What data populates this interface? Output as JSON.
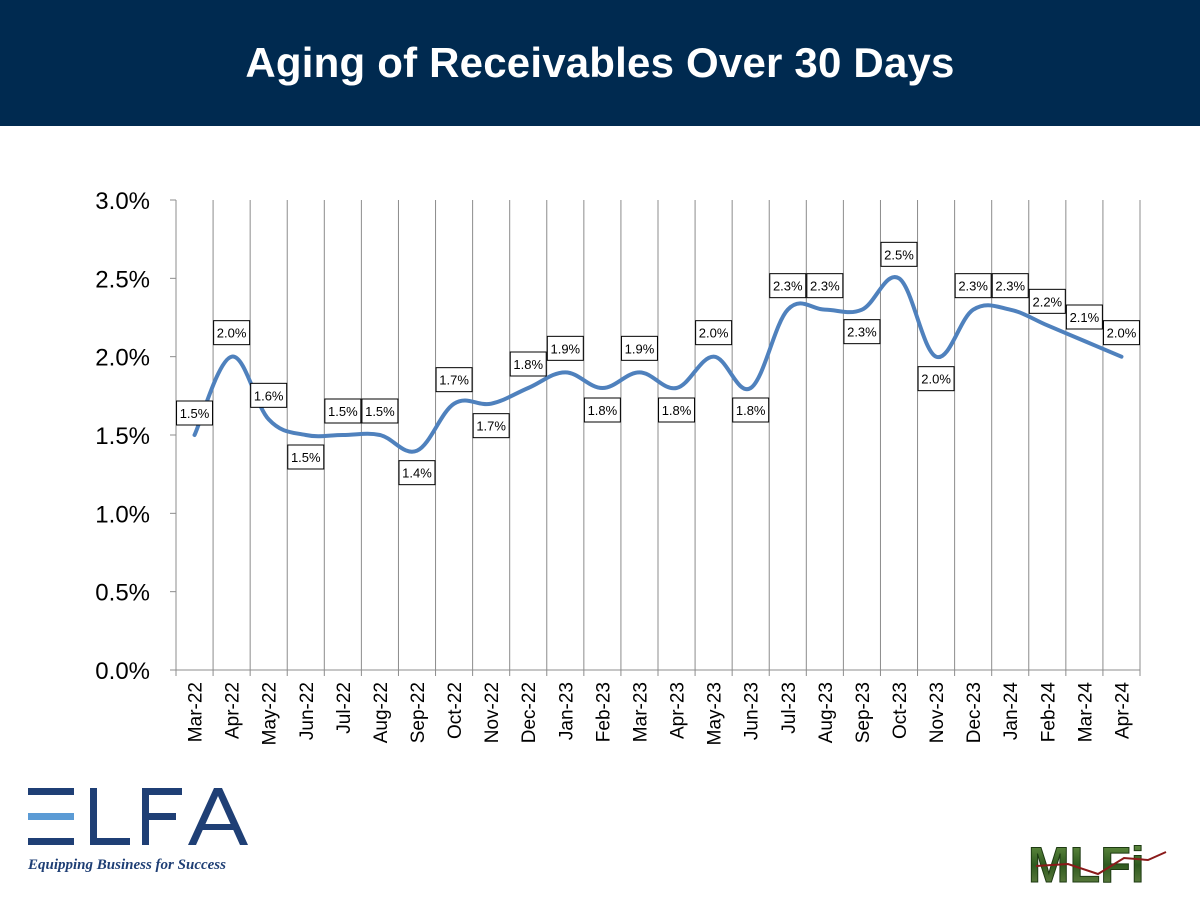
{
  "header": {
    "title": "Aging of Receivables Over 30 Days"
  },
  "chart_data": {
    "type": "line",
    "title": "Aging of Receivables Over 30 Days",
    "categories": [
      "Mar-22",
      "Apr-22",
      "May-22",
      "Jun-22",
      "Jul-22",
      "Aug-22",
      "Sep-22",
      "Oct-22",
      "Nov-22",
      "Dec-22",
      "Jan-23",
      "Feb-23",
      "Mar-23",
      "Apr-23",
      "May-23",
      "Jun-23",
      "Jul-23",
      "Aug-23",
      "Sep-23",
      "Oct-23",
      "Nov-23",
      "Dec-23",
      "Jan-24",
      "Feb-24",
      "Mar-24",
      "Apr-24"
    ],
    "values": [
      1.5,
      2.0,
      1.6,
      1.5,
      1.5,
      1.5,
      1.4,
      1.7,
      1.7,
      1.8,
      1.9,
      1.8,
      1.9,
      1.8,
      2.0,
      1.8,
      2.3,
      2.3,
      2.3,
      2.5,
      2.0,
      2.3,
      2.3,
      2.2,
      2.1,
      2.0
    ],
    "labels": [
      "1.5%",
      "2.0%",
      "1.6%",
      "1.5%",
      "1.5%",
      "1.5%",
      "1.4%",
      "1.7%",
      "1.7%",
      "1.8%",
      "1.9%",
      "1.8%",
      "1.9%",
      "1.8%",
      "2.0%",
      "1.8%",
      "2.3%",
      "2.3%",
      "2.3%",
      "2.5%",
      "2.0%",
      "2.3%",
      "2.3%",
      "2.2%",
      "2.1%",
      "2.0%"
    ],
    "y_ticks": [
      "0.0%",
      "0.5%",
      "1.0%",
      "1.5%",
      "2.0%",
      "2.5%",
      "3.0%"
    ],
    "ylim": [
      0,
      3.0
    ],
    "xlabel": "",
    "ylabel": "",
    "grid": "vertical",
    "line_color": "#4f81bd",
    "legend": "none"
  },
  "logos": {
    "elfa": {
      "text": "ELFA",
      "tagline": "Equipping Business for Success",
      "color": "#1f3f75",
      "accent": "#5b9bd5"
    },
    "mlfi": {
      "text": "MLFi",
      "color": "#3a6b2a"
    }
  }
}
